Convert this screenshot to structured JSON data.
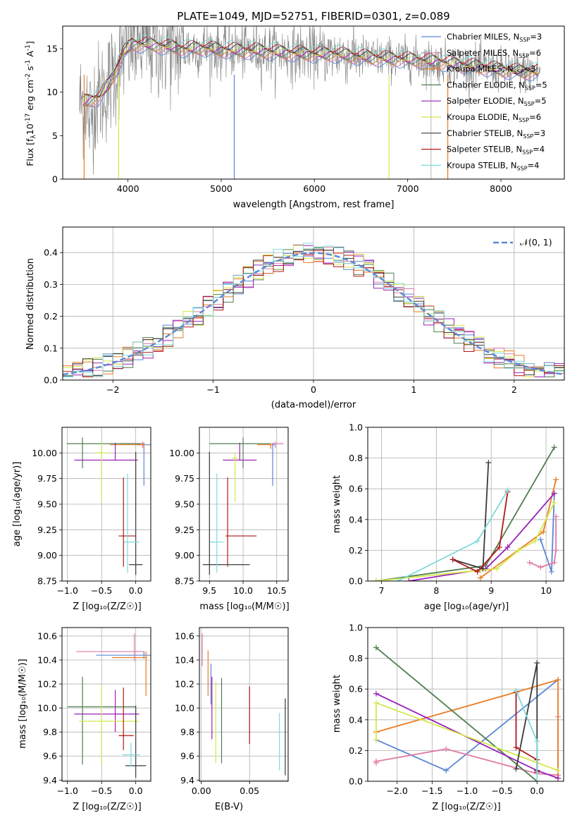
{
  "title": "PLATE=1049, MJD=52751, FIBERID=0301, z=0.089",
  "colors": {
    "Chabrier MILES": "#5b87d6",
    "Salpeter MILES": "#e07aa5",
    "Kroupa MILES": "#e87c24",
    "Chabrier ELODIE": "#4f7f4f",
    "Salpeter ELODIE": "#9a20b8",
    "Kroupa ELODIE": "#d4e84a",
    "Chabrier STELIB": "#3a3a3a",
    "Salpeter STELIB": "#b01818",
    "Kroupa STELIB": "#7edadc",
    "data": "#808080"
  },
  "panels": {
    "spectrum": {
      "xlabel": "wavelength [Angstrom, rest frame]",
      "ylabel_parts": [
        "Flux [f",
        "λ",
        "10",
        "-17",
        " erg cm",
        "-2",
        " s",
        "-1",
        " A",
        "-1",
        "]"
      ],
      "xticks": [
        "4000",
        "5000",
        "6000",
        "7000",
        "8000"
      ],
      "yticks": [
        "0",
        "5",
        "10",
        "15"
      ],
      "legend": [
        {
          "model": "Chabrier MILES",
          "label": "Chabrier MILES, N",
          "sub": "SSP",
          "n": "=3"
        },
        {
          "model": "Salpeter MILES",
          "label": "Salpeter MILES, N",
          "sub": "SSP",
          "n": "=6"
        },
        {
          "model": "Kroupa MILES",
          "label": "Kroupa MILES, N",
          "sub": "SSP",
          "n": "=3"
        },
        {
          "model": "Chabrier ELODIE",
          "label": "Chabrier ELODIE, N",
          "sub": "SSP",
          "n": "=5"
        },
        {
          "model": "Salpeter ELODIE",
          "label": "Salpeter ELODIE, N",
          "sub": "SSP",
          "n": "=5"
        },
        {
          "model": "Kroupa ELODIE",
          "label": "Kroupa ELODIE, N",
          "sub": "SSP",
          "n": "=6"
        },
        {
          "model": "Chabrier STELIB",
          "label": "Chabrier STELIB, N",
          "sub": "SSP",
          "n": "=3"
        },
        {
          "model": "Salpeter STELIB",
          "label": "Salpeter STELIB, N",
          "sub": "SSP",
          "n": "=4"
        },
        {
          "model": "Kroupa STELIB",
          "label": "Kroupa STELIB, N",
          "sub": "SSP",
          "n": "=4"
        }
      ]
    },
    "residuals": {
      "xlabel": "(data-model)/error",
      "ylabel": "Normed distribution",
      "xticks": [
        "−2",
        "−1",
        "0",
        "1",
        "2"
      ],
      "yticks": [
        "0.0",
        "0.1",
        "0.2",
        "0.3",
        "0.4"
      ],
      "legend": "𝒩(0, 1)"
    },
    "age_Z": {
      "xlabel": "Z [log₁₀(Z/Z☉)]",
      "ylabel": "age  [log₁₀(age/yr)]",
      "xticks": [
        "−1.0",
        "−0.5",
        "0.0"
      ],
      "yticks": [
        "8.75",
        "9.00",
        "9.25",
        "9.50",
        "9.75",
        "10.00"
      ]
    },
    "age_mass": {
      "xlabel": "mass [log₁₀(M/M☉)]",
      "xticks": [
        "9.5",
        "10.0",
        "10.5"
      ],
      "yticks": [
        "8.75",
        "9.00",
        "9.25",
        "9.50",
        "9.75",
        "10.00"
      ]
    },
    "weight_age": {
      "xlabel": "age  [log₁₀(age/yr)]",
      "ylabel": "mass weight",
      "xticks": [
        "7",
        "8",
        "9",
        "10"
      ],
      "yticks": [
        "0.0",
        "0.2",
        "0.4",
        "0.6",
        "0.8",
        "1.0"
      ]
    },
    "mass_Z": {
      "xlabel": "Z [log₁₀(Z/Z☉)]",
      "ylabel": "mass [log₁₀(M/M☉)]",
      "xticks": [
        "−1.0",
        "−0.5",
        "0.0"
      ],
      "yticks": [
        "9.4",
        "9.6",
        "9.8",
        "10.0",
        "10.2",
        "10.4",
        "10.6"
      ]
    },
    "mass_EBV": {
      "xlabel": "E(B-V)",
      "xticks": [
        "0.00",
        "0.05"
      ],
      "yticks": [
        "9.4",
        "9.6",
        "9.8",
        "10.0",
        "10.2",
        "10.4",
        "10.6"
      ]
    },
    "weight_Z": {
      "xlabel": "Z [log₁₀(Z/Z☉)]",
      "ylabel": "mass weight",
      "xticks": [
        "−2.0",
        "−1.5",
        "−1.0",
        "−0.5",
        "0.0"
      ],
      "yticks": [
        "0.0",
        "0.2",
        "0.4",
        "0.6",
        "0.8",
        "1.0"
      ]
    }
  },
  "chart_data": [
    {
      "type": "line",
      "id": "spectrum",
      "title": "PLATE=1049, MJD=52751, FIBERID=0301, z=0.089",
      "xlabel": "wavelength [Angstrom, rest frame]",
      "ylabel": "Flux [fλ 10^-17 erg cm^-2 s^-1 A^-1]",
      "xlim": [
        3300,
        8680
      ],
      "ylim": [
        0,
        17.6
      ],
      "continuum_x": [
        3500,
        3700,
        3800,
        3950,
        4050,
        4200,
        4400,
        4600,
        4800,
        5000,
        5200,
        5400,
        5600,
        5800,
        6000,
        6200,
        6400,
        6600,
        6800,
        7000,
        7200,
        7400,
        7600,
        7800,
        8000,
        8200,
        8400
      ],
      "continuum_y": [
        8.8,
        9.5,
        11.0,
        14.5,
        15.6,
        15.5,
        15.3,
        15.0,
        15.1,
        14.9,
        14.8,
        14.8,
        14.6,
        14.5,
        14.4,
        14.4,
        14.2,
        14.0,
        13.9,
        13.8,
        13.6,
        13.4,
        13.1,
        12.9,
        12.6,
        12.4,
        12.3
      ],
      "series": [
        "Chabrier MILES",
        "Salpeter MILES",
        "Kroupa MILES",
        "Chabrier ELODIE",
        "Salpeter ELODIE",
        "Kroupa ELODIE",
        "Chabrier STELIB",
        "Salpeter STELIB",
        "Kroupa STELIB"
      ]
    },
    {
      "type": "line",
      "id": "residuals",
      "xlabel": "(data-model)/error",
      "ylabel": "Normed distribution",
      "xlim": [
        -2.5,
        2.5
      ],
      "ylim": [
        0,
        0.48
      ],
      "bin_width": 0.1,
      "reference": "N(0,1)"
    },
    {
      "type": "scatter",
      "id": "age_Z",
      "xlim": [
        -1.08,
        0.22
      ],
      "ylim": [
        8.75,
        10.25
      ],
      "points": [
        {
          "model": "Chabrier MILES",
          "x": 0.12,
          "y": 10.08,
          "xerr": [
            0.11,
            0.11
          ],
          "yerr": [
            0.4,
            0.02
          ]
        },
        {
          "model": "Salpeter MILES",
          "x": 0.1,
          "y": 10.09,
          "xerr": [
            0.32,
            0.02
          ],
          "yerr": [
            0.04,
            0.02
          ]
        },
        {
          "model": "Kroupa MILES",
          "x": 0.12,
          "y": 10.08,
          "xerr": [
            0.5,
            0.0
          ],
          "yerr": [
            0.04,
            0.02
          ]
        },
        {
          "model": "Chabrier ELODIE",
          "x": -0.78,
          "y": 10.09,
          "xerr": [
            0.23,
            0.85
          ],
          "yerr": [
            0.24,
            0.06
          ]
        },
        {
          "model": "Salpeter ELODIE",
          "x": -0.3,
          "y": 9.93,
          "xerr": [
            0.6,
            0.33
          ],
          "yerr": [
            0.0,
            0.17
          ]
        },
        {
          "model": "Kroupa ELODIE",
          "x": -0.5,
          "y": 10.0,
          "xerr": [
            0.1,
            0.1
          ],
          "yerr": [
            0.48,
            0.1
          ]
        },
        {
          "model": "Chabrier STELIB",
          "x": 0.0,
          "y": 8.91,
          "xerr": [
            0.1,
            0.1
          ],
          "yerr": [
            0.1,
            1.1
          ]
        },
        {
          "model": "Salpeter STELIB",
          "x": -0.18,
          "y": 9.19,
          "xerr": [
            0.07,
            0.18
          ],
          "yerr": [
            0.3,
            0.57
          ]
        },
        {
          "model": "Kroupa STELIB",
          "x": -0.12,
          "y": 9.13,
          "xerr": [
            0.05,
            0.17
          ],
          "yerr": [
            0.3,
            0.67
          ]
        }
      ]
    },
    {
      "type": "scatter",
      "id": "age_mass",
      "xlim": [
        9.35,
        10.67
      ],
      "ylim": [
        8.75,
        10.25
      ],
      "points": [
        {
          "model": "Chabrier MILES",
          "x": 10.44,
          "y": 10.08,
          "xerr": [
            0.03,
            0.03
          ],
          "yerr": [
            0.4,
            0.02
          ]
        },
        {
          "model": "Salpeter MILES",
          "x": 10.48,
          "y": 10.09,
          "xerr": [
            0.05,
            0.12
          ],
          "yerr": [
            0.04,
            0.02
          ]
        },
        {
          "model": "Kroupa MILES",
          "x": 10.41,
          "y": 10.08,
          "xerr": [
            0.2,
            0.02
          ],
          "yerr": [
            0.04,
            0.02
          ]
        },
        {
          "model": "Chabrier ELODIE",
          "x": 10.0,
          "y": 10.09,
          "xerr": [
            0.5,
            0.4
          ],
          "yerr": [
            0.24,
            0.06
          ]
        },
        {
          "model": "Salpeter ELODIE",
          "x": 9.95,
          "y": 9.93,
          "xerr": [
            0.25,
            0.25
          ],
          "yerr": [
            0.0,
            0.17
          ]
        },
        {
          "model": "Kroupa ELODIE",
          "x": 9.88,
          "y": 9.95,
          "xerr": [
            0.05,
            0.05
          ],
          "yerr": [
            0.43,
            0.05
          ]
        },
        {
          "model": "Chabrier STELIB",
          "x": 9.5,
          "y": 8.91,
          "xerr": [
            0.1,
            0.6
          ],
          "yerr": [
            0.1,
            1.1
          ]
        },
        {
          "model": "Salpeter STELIB",
          "x": 9.77,
          "y": 9.19,
          "xerr": [
            0.03,
            0.43
          ],
          "yerr": [
            0.3,
            0.57
          ]
        },
        {
          "model": "Kroupa STELIB",
          "x": 9.61,
          "y": 9.13,
          "xerr": [
            0.1,
            0.1
          ],
          "yerr": [
            0.3,
            0.67
          ]
        }
      ]
    },
    {
      "type": "line",
      "id": "weight_age",
      "xlim": [
        6.75,
        10.32
      ],
      "ylim": [
        0,
        1
      ],
      "series": [
        {
          "model": "Chabrier MILES",
          "x": [
            9.9,
            10.1,
            10.15
          ],
          "y": [
            0.27,
            0.06,
            0.57
          ]
        },
        {
          "model": "Salpeter MILES",
          "x": [
            9.7,
            9.9,
            10.15,
            10.18,
            10.18
          ],
          "y": [
            0.12,
            0.09,
            0.12,
            0.2,
            0.42
          ]
        },
        {
          "model": "Kroupa MILES",
          "x": [
            8.8,
            9.95,
            10.18
          ],
          "y": [
            0.02,
            0.32,
            0.66
          ]
        },
        {
          "model": "Chabrier ELODIE",
          "x": [
            6.9,
            8.9,
            10.15
          ],
          "y": [
            0.0,
            0.1,
            0.87
          ]
        },
        {
          "model": "Salpeter ELODIE",
          "x": [
            7.5,
            8.9,
            9.3,
            10.15
          ],
          "y": [
            0.0,
            0.08,
            0.22,
            0.57
          ]
        },
        {
          "model": "Kroupa ELODIE",
          "x": [
            6.9,
            8.8,
            9.1,
            9.5,
            9.8,
            10.15
          ],
          "y": [
            0.0,
            0.07,
            0.08,
            0.2,
            0.26,
            0.51
          ]
        },
        {
          "model": "Chabrier STELIB",
          "x": [
            8.3,
            8.85,
            8.95
          ],
          "y": [
            0.14,
            0.08,
            0.77
          ]
        },
        {
          "model": "Salpeter STELIB",
          "x": [
            8.3,
            8.75,
            9.15,
            9.3
          ],
          "y": [
            0.14,
            0.06,
            0.22,
            0.58
          ]
        },
        {
          "model": "Kroupa STELIB",
          "x": [
            7.3,
            8.75,
            9.3
          ],
          "y": [
            0.0,
            0.26,
            0.59
          ]
        }
      ]
    },
    {
      "type": "scatter",
      "id": "mass_Z",
      "xlim": [
        -1.08,
        0.22
      ],
      "ylim": [
        9.39,
        10.67
      ],
      "points": [
        {
          "model": "Chabrier MILES",
          "x": 0.12,
          "y": 10.44,
          "xerr": [
            0.7,
            0.1
          ],
          "yerr": [
            0.03,
            0.03
          ]
        },
        {
          "model": "Salpeter MILES",
          "x": -0.02,
          "y": 10.47,
          "xerr": [
            0.85,
            0.15
          ],
          "yerr": [
            0.08,
            0.15
          ]
        },
        {
          "model": "Kroupa MILES",
          "x": 0.15,
          "y": 10.42,
          "xerr": [
            0.5,
            0.02
          ],
          "yerr": [
            0.32,
            0.05
          ]
        },
        {
          "model": "Chabrier ELODIE",
          "x": -0.78,
          "y": 10.01,
          "xerr": [
            0.22,
            0.78
          ],
          "yerr": [
            0.48,
            0.25
          ]
        },
        {
          "model": "Salpeter ELODIE",
          "x": -0.3,
          "y": 9.95,
          "xerr": [
            0.6,
            0.35
          ],
          "yerr": [
            0.15,
            0.2
          ]
        },
        {
          "model": "Kroupa ELODIE",
          "x": -0.5,
          "y": 9.89,
          "xerr": [
            0.33,
            0.55
          ],
          "yerr": [
            0.35,
            0.3
          ]
        },
        {
          "model": "Chabrier STELIB",
          "x": 0.0,
          "y": 9.52,
          "xerr": [
            0.15,
            0.15
          ],
          "yerr": [
            0.1,
            0.5
          ]
        },
        {
          "model": "Salpeter STELIB",
          "x": -0.18,
          "y": 9.77,
          "xerr": [
            0.07,
            0.15
          ],
          "yerr": [
            0.12,
            0.4
          ]
        },
        {
          "model": "Kroupa STELIB",
          "x": -0.07,
          "y": 9.61,
          "xerr": [
            0.13,
            0.13
          ],
          "yerr": [
            0.1,
            0.1
          ]
        }
      ]
    },
    {
      "type": "scatter",
      "id": "mass_EBV",
      "xlim": [
        -0.002,
        0.09
      ],
      "ylim": [
        9.39,
        10.67
      ],
      "points": [
        {
          "model": "Chabrier MILES",
          "x": 0.01,
          "y": 10.1,
          "xerr": [
            0,
            0
          ],
          "yerr": [
            0.07,
            0.27
          ]
        },
        {
          "model": "Salpeter MILES",
          "x": 0.001,
          "y": 10.47,
          "xerr": [
            0,
            0
          ],
          "yerr": [
            0.12,
            0.15
          ]
        },
        {
          "model": "Kroupa MILES",
          "x": 0.007,
          "y": 10.3,
          "xerr": [
            0,
            0
          ],
          "yerr": [
            0.2,
            0.18
          ]
        },
        {
          "model": "Chabrier ELODIE",
          "x": 0.021,
          "y": 10.0,
          "xerr": [
            0,
            0
          ],
          "yerr": [
            0.46,
            0.25
          ]
        },
        {
          "model": "Salpeter ELODIE",
          "x": 0.011,
          "y": 10.0,
          "xerr": [
            0,
            0
          ],
          "yerr": [
            0.26,
            0.26
          ]
        },
        {
          "model": "Kroupa ELODIE",
          "x": 0.015,
          "y": 9.88,
          "xerr": [
            0,
            0
          ],
          "yerr": [
            0.34,
            0.34
          ]
        },
        {
          "model": "Chabrier STELIB",
          "x": 0.087,
          "y": 9.76,
          "xerr": [
            0,
            0
          ],
          "yerr": [
            0.32,
            0.32
          ]
        },
        {
          "model": "Salpeter STELIB",
          "x": 0.05,
          "y": 9.94,
          "xerr": [
            0,
            0
          ],
          "yerr": [
            0.24,
            0.24
          ]
        },
        {
          "model": "Kroupa STELIB",
          "x": 0.081,
          "y": 9.72,
          "xerr": [
            0,
            0
          ],
          "yerr": [
            0.24,
            0.24
          ]
        }
      ]
    },
    {
      "type": "line",
      "id": "weight_Z",
      "xlim": [
        -2.42,
        0.38
      ],
      "ylim": [
        0,
        1
      ],
      "series": [
        {
          "model": "Chabrier MILES",
          "x": [
            -2.3,
            -1.3,
            0.3
          ],
          "y": [
            0.27,
            0.07,
            0.66
          ]
        },
        {
          "model": "Salpeter MILES",
          "x": [
            -2.3,
            -2.3,
            -1.3,
            0.0,
            0.3,
            0.3
          ],
          "y": [
            0.12,
            0.13,
            0.21,
            0.05,
            0.04,
            0.42
          ]
        },
        {
          "model": "Kroupa MILES",
          "x": [
            -2.3,
            -0.3,
            0.3,
            0.3
          ],
          "y": [
            0.32,
            0.58,
            0.66,
            0.02
          ]
        },
        {
          "model": "Chabrier ELODIE",
          "x": [
            -2.3,
            0.0
          ],
          "y": [
            0.87,
            0.0
          ]
        },
        {
          "model": "Salpeter ELODIE",
          "x": [
            -2.3,
            0.0,
            0.3
          ],
          "y": [
            0.57,
            0.07,
            0.02
          ]
        },
        {
          "model": "Kroupa ELODIE",
          "x": [
            -2.3,
            -2.3,
            0.3
          ],
          "y": [
            0.27,
            0.51,
            0.07
          ]
        },
        {
          "model": "Chabrier STELIB",
          "x": [
            -0.3,
            0.0,
            0.0
          ],
          "y": [
            0.08,
            0.77,
            0.07
          ]
        },
        {
          "model": "Salpeter STELIB",
          "x": [
            -0.3,
            -0.3,
            0.0,
            0.0
          ],
          "y": [
            0.58,
            0.22,
            0.14,
            0.06
          ]
        },
        {
          "model": "Kroupa STELIB",
          "x": [
            -0.3,
            0.0,
            0.0
          ],
          "y": [
            0.59,
            0.26,
            0.0
          ]
        }
      ]
    }
  ]
}
